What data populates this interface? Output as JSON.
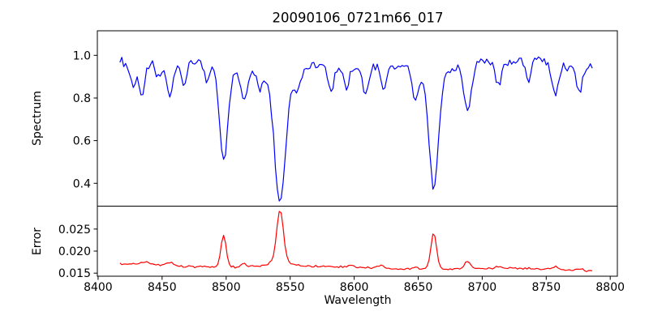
{
  "title": "20090106_0721m66_017",
  "chart_data": {
    "type": "line",
    "title": "20090106_0721m66_017",
    "xlabel": "Wavelength",
    "x_ticks": [
      8400,
      8450,
      8500,
      8550,
      8600,
      8650,
      8700,
      8750,
      8800
    ],
    "xlim": [
      8399.4,
      8805.6
    ],
    "x_start": 8417,
    "x_end": 8786,
    "x_step": 1.5,
    "grid": false,
    "legend": "none",
    "background": "#ffffff",
    "panels": [
      {
        "name": "Spectrum",
        "ylabel": "Spectrum",
        "color": "#0000ff",
        "y_ticks": [
          0.4,
          0.6,
          0.8,
          1.0
        ],
        "y_tick_labels": [
          "0.4",
          "0.6",
          "0.8",
          "1.0"
        ],
        "ylim": [
          0.293,
          1.115
        ],
        "continuum_level": 0.958,
        "noise_amplitude": 0.024,
        "absorption_lines": [
          {
            "center": 8427,
            "depth": 0.1,
            "width": 2.0
          },
          {
            "center": 8434,
            "depth": 0.15,
            "width": 2.5
          },
          {
            "center": 8447,
            "depth": 0.08,
            "width": 2.0
          },
          {
            "center": 8456,
            "depth": 0.16,
            "width": 2.5
          },
          {
            "center": 8467,
            "depth": 0.12,
            "width": 2.0
          },
          {
            "center": 8485,
            "depth": 0.1,
            "width": 2.0
          },
          {
            "center": 8498.02,
            "depth": 0.42,
            "width": 3.2
          },
          {
            "center": 8498.02,
            "depth": 0.05,
            "width": 9.0
          },
          {
            "center": 8514,
            "depth": 0.15,
            "width": 2.5
          },
          {
            "center": 8526,
            "depth": 0.08,
            "width": 2.0
          },
          {
            "center": 8542.09,
            "depth": 0.56,
            "width": 4.2
          },
          {
            "center": 8542.09,
            "depth": 0.07,
            "width": 12.0
          },
          {
            "center": 8556,
            "depth": 0.07,
            "width": 2.0
          },
          {
            "center": 8582,
            "depth": 0.13,
            "width": 2.2
          },
          {
            "center": 8594,
            "depth": 0.1,
            "width": 2.0
          },
          {
            "center": 8609,
            "depth": 0.12,
            "width": 2.2
          },
          {
            "center": 8623,
            "depth": 0.11,
            "width": 2.0
          },
          {
            "center": 8648,
            "depth": 0.16,
            "width": 2.5
          },
          {
            "center": 8662.14,
            "depth": 0.54,
            "width": 3.8
          },
          {
            "center": 8662.14,
            "depth": 0.06,
            "width": 10.0
          },
          {
            "center": 8688.6,
            "depth": 0.21,
            "width": 3.0
          },
          {
            "center": 8713,
            "depth": 0.11,
            "width": 2.2
          },
          {
            "center": 8736,
            "depth": 0.1,
            "width": 2.2
          },
          {
            "center": 8757,
            "depth": 0.13,
            "width": 2.5
          },
          {
            "center": 8776,
            "depth": 0.12,
            "width": 2.2
          }
        ]
      },
      {
        "name": "Error",
        "ylabel": "Error",
        "color": "#ff0000",
        "y_ticks": [
          0.015,
          0.02,
          0.025
        ],
        "y_tick_labels": [
          "0.015",
          "0.020",
          "0.025"
        ],
        "ylim": [
          0.0143,
          0.0302
        ],
        "baseline_start": 0.01685,
        "baseline_end": 0.01567,
        "noise_amplitude": 0.00028,
        "peaks": [
          {
            "center": 8437,
            "height": 0.0008,
            "width": 2.5
          },
          {
            "center": 8456,
            "height": 0.0007,
            "width": 2.2
          },
          {
            "center": 8498.02,
            "height": 0.0072,
            "width": 2.0
          },
          {
            "center": 8514,
            "height": 0.0007,
            "width": 2.2
          },
          {
            "center": 8542.09,
            "height": 0.0115,
            "width": 2.6
          },
          {
            "center": 8542.09,
            "height": 0.0012,
            "width": 8.0
          },
          {
            "center": 8598,
            "height": 0.0005,
            "width": 2.2
          },
          {
            "center": 8621,
            "height": 0.0006,
            "width": 2.2
          },
          {
            "center": 8648,
            "height": 0.0005,
            "width": 2.2
          },
          {
            "center": 8662.14,
            "height": 0.0082,
            "width": 2.2
          },
          {
            "center": 8688.6,
            "height": 0.0018,
            "width": 2.2
          },
          {
            "center": 8713,
            "height": 0.0005,
            "width": 2.2
          },
          {
            "center": 8757,
            "height": 0.0006,
            "width": 2.5
          },
          {
            "center": 8776,
            "height": 0.0005,
            "width": 2.2
          }
        ]
      }
    ]
  }
}
